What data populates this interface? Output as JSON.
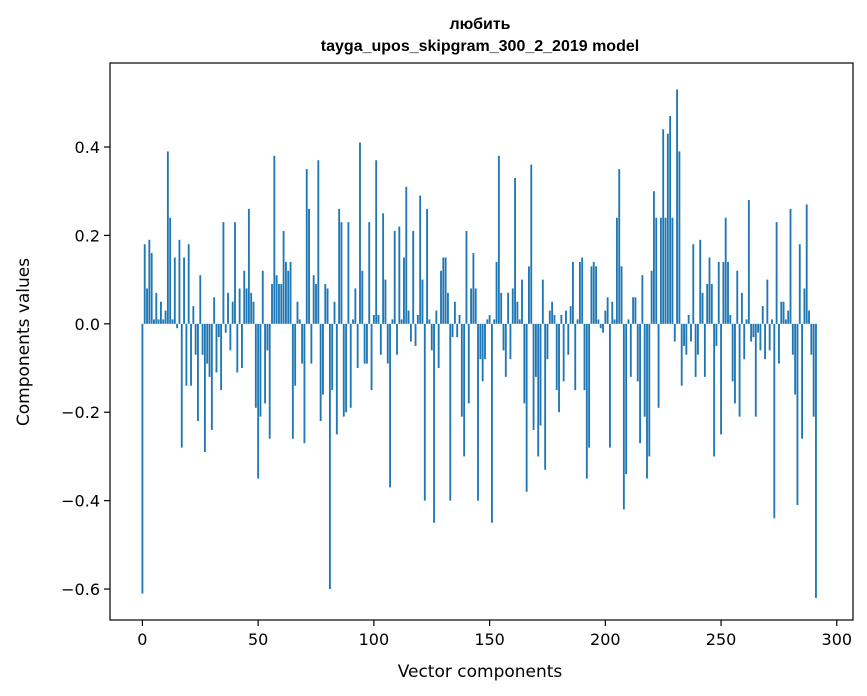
{
  "chart_data": {
    "type": "bar",
    "title": "любить",
    "subtitle": "tayga_upos_skipgram_300_2_2019 model",
    "xlabel": "Vector components",
    "ylabel": "Components values",
    "xlim": [
      -14,
      307
    ],
    "ylim": [
      -0.67,
      0.59
    ],
    "xticks": [
      0,
      50,
      100,
      150,
      200,
      250,
      300
    ],
    "xtick_labels": [
      "0",
      "50",
      "100",
      "150",
      "200",
      "250",
      "300"
    ],
    "yticks": [
      -0.6,
      -0.4,
      -0.2,
      0.0,
      0.2,
      0.4
    ],
    "ytick_labels": [
      "−0.6",
      "−0.4",
      "−0.2",
      "0.0",
      "0.2",
      "0.4"
    ],
    "bar_color": "#1f77b4",
    "grid": false,
    "values": [
      -0.61,
      0.18,
      0.08,
      0.19,
      0.16,
      0.01,
      0.07,
      0.01,
      0.05,
      0.01,
      0.03,
      0.39,
      0.24,
      0.01,
      0.15,
      -0.01,
      0.19,
      -0.28,
      0.15,
      -0.14,
      0.18,
      -0.14,
      0.04,
      -0.07,
      -0.22,
      0.11,
      -0.07,
      -0.29,
      -0.09,
      -0.12,
      -0.24,
      0.06,
      -0.11,
      -0.03,
      -0.15,
      0.23,
      -0.02,
      0.07,
      -0.06,
      0.05,
      0.23,
      -0.11,
      0.08,
      -0.1,
      0.12,
      0.08,
      0.26,
      0.07,
      0.05,
      -0.19,
      -0.35,
      -0.21,
      0.12,
      -0.18,
      -0.06,
      -0.26,
      0.09,
      0.38,
      0.11,
      0.09,
      0.09,
      0.21,
      0.14,
      0.12,
      0.14,
      -0.26,
      -0.14,
      0.05,
      0.01,
      -0.09,
      -0.27,
      0.35,
      0.26,
      -0.09,
      0.11,
      0.09,
      0.37,
      -0.22,
      -0.16,
      0.09,
      0.08,
      -0.6,
      -0.15,
      0.05,
      -0.25,
      0.26,
      0.23,
      -0.21,
      -0.2,
      0.23,
      -0.19,
      0.01,
      0.08,
      -0.1,
      0.41,
      0.12,
      -0.09,
      -0.09,
      0.23,
      -0.15,
      0.02,
      0.37,
      0.02,
      -0.07,
      0.25,
      0.1,
      -0.09,
      -0.37,
      0.01,
      0.21,
      -0.07,
      0.22,
      0.01,
      0.15,
      0.31,
      0.03,
      -0.04,
      0.21,
      -0.05,
      0.02,
      0.29,
      0.1,
      -0.4,
      0.26,
      0.01,
      -0.06,
      -0.45,
      0.03,
      -0.1,
      0.12,
      0.15,
      0.15,
      0.07,
      -0.4,
      -0.03,
      0.05,
      -0.03,
      0.02,
      -0.21,
      -0.3,
      0.21,
      -0.18,
      0.08,
      0.16,
      0.08,
      -0.4,
      -0.08,
      -0.13,
      -0.08,
      0.01,
      0.02,
      -0.45,
      0.01,
      0.14,
      0.38,
      0.07,
      -0.06,
      -0.12,
      0.07,
      -0.08,
      0.08,
      0.33,
      0.05,
      0.01,
      0.1,
      -0.18,
      -0.38,
      0.13,
      0.36,
      -0.24,
      -0.12,
      -0.3,
      -0.23,
      0.1,
      -0.33,
      -0.08,
      0.03,
      0.05,
      0.02,
      -0.15,
      -0.2,
      0.02,
      -0.13,
      0.03,
      -0.07,
      0.04,
      0.14,
      -0.15,
      0.01,
      0.14,
      0.15,
      -0.15,
      -0.35,
      -0.28,
      0.13,
      0.14,
      0.13,
      0.01,
      -0.01,
      -0.02,
      0.03,
      0.06,
      -0.28,
      0.05,
      0.01,
      0.24,
      0.35,
      0.13,
      -0.42,
      -0.34,
      0.01,
      -0.12,
      0.06,
      0.06,
      -0.13,
      -0.27,
      0.11,
      -0.21,
      -0.35,
      -0.3,
      0.12,
      0.3,
      0.24,
      -0.19,
      0.24,
      0.44,
      0.24,
      0.43,
      0.47,
      0.24,
      -0.04,
      0.53,
      0.39,
      -0.14,
      -0.05,
      -0.07,
      0.02,
      -0.04,
      0.18,
      -0.12,
      -0.07,
      0.19,
      0.07,
      -0.12,
      0.09,
      0.15,
      0.09,
      -0.3,
      -0.05,
      0.14,
      -0.25,
      0.14,
      0.24,
      0.14,
      0.02,
      -0.13,
      -0.18,
      0.12,
      -0.21,
      0.07,
      -0.08,
      0.01,
      0.28,
      -0.04,
      -0.03,
      -0.21,
      -0.02,
      -0.06,
      0.04,
      -0.08,
      0.1,
      -0.06,
      0.01,
      -0.44,
      0.23,
      -0.09,
      0.05,
      0.05,
      0.01,
      0.03,
      0.26,
      -0.07,
      -0.16,
      -0.41,
      0.18,
      -0.26,
      0.08,
      0.27,
      0.03,
      -0.07,
      -0.21,
      -0.62
    ]
  }
}
